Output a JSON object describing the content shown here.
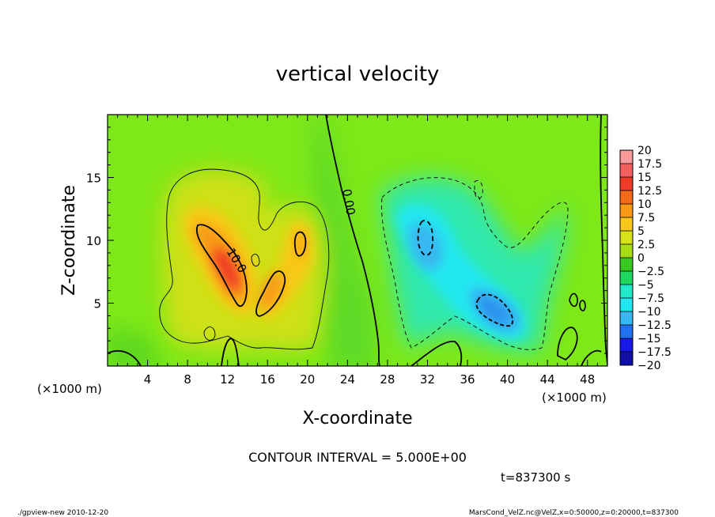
{
  "chart_data": {
    "type": "heatmap",
    "title": "vertical velocity",
    "xlabel": "X-coordinate",
    "ylabel": "Z-coordinate",
    "x_unit_label": "(×1000 m)",
    "y_unit_label": "(×1000 m)",
    "xlim": [
      0,
      50
    ],
    "ylim": [
      0,
      20
    ],
    "x_ticks": [
      "4",
      "8",
      "12",
      "16",
      "20",
      "24",
      "28",
      "32",
      "36",
      "40",
      "44",
      "48"
    ],
    "y_ticks": [
      "5",
      "10",
      "15"
    ],
    "contour_interval_text": "CONTOUR INTERVAL = 5.000E+00",
    "contour_labels": [
      "10.0",
      "0.00"
    ],
    "time_text": "t=837300 s",
    "colorbar": {
      "levels": [
        "20",
        "17.5",
        "15",
        "12.5",
        "10",
        "7.5",
        "5",
        "2.5",
        "0",
        "−2.5",
        "−5",
        "−7.5",
        "−10",
        "−12.5",
        "−15",
        "−17.5",
        "−20"
      ],
      "colors": [
        "#f89a9a",
        "#f46060",
        "#f03a28",
        "#f46a18",
        "#f89a18",
        "#f8c818",
        "#d8e018",
        "#a8dc14",
        "#38c820",
        "#20d860",
        "#20e8c8",
        "#20e8f0",
        "#38b8f0",
        "#2070f0",
        "#1818e8",
        "#1010a8",
        "#8020c0"
      ]
    },
    "features": [
      {
        "kind": "updraft",
        "x": 12,
        "z": 7.5,
        "peak": 12.5
      },
      {
        "kind": "updraft",
        "x": 17.5,
        "z": 6.5,
        "peak": 10
      },
      {
        "kind": "updraft",
        "x": 19.5,
        "z": 10.5,
        "peak": 7.5
      },
      {
        "kind": "downdraft",
        "x": 31.5,
        "z": 10.5,
        "peak": -10
      },
      {
        "kind": "downdraft",
        "x": 39,
        "z": 4.5,
        "peak": -12.5
      }
    ]
  },
  "footer": {
    "left": "./gpview-new   2010-12-20",
    "right": "MarsCond_VelZ.nc@VelZ,x=0:50000,z=0:20000,t=837300"
  }
}
